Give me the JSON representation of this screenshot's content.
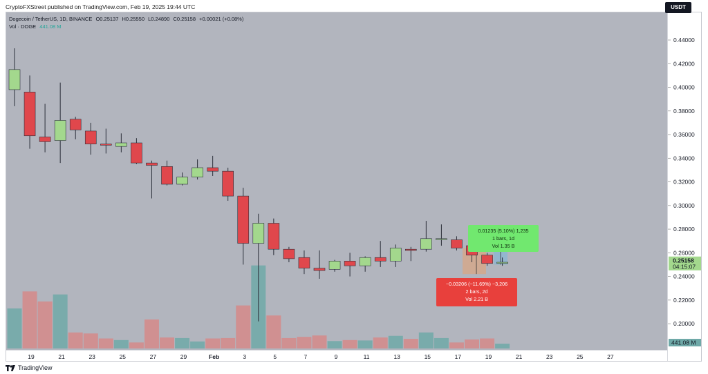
{
  "publisher_text": "CryptoFXStreet published on TradingView.com, Feb 19, 2025 19:44 UTC",
  "header": {
    "symbol": "Dogecoin / TetherUS, 1D, BINANCE",
    "open": "O0.25137",
    "high": "H0.25550",
    "low": "L0.24890",
    "close": "C0.25158",
    "change": "+0.00021 (+0.08%)",
    "volume_label": "Vol · DOGE",
    "volume_value": "441.08 M"
  },
  "currency_badge": "USDT",
  "measure_up": {
    "line1": "0.01235 (5.10%) 1,235",
    "line2": "1 bars, 1d",
    "line3": "Vol 1.35 B"
  },
  "measure_down": {
    "line1": "−0.03206 (−11.69%) −3,206",
    "line2": "2 bars, 2d",
    "line3": "Vol 2.21 B"
  },
  "last_price": {
    "price": "0.25158",
    "countdown": "04:15:07"
  },
  "volume_badge": "441.08 M",
  "footer": {
    "brand": "TradingView"
  },
  "colors": {
    "up": "#a3d88d",
    "down": "#e0474c",
    "vol_up": "#6fa9a8",
    "vol_down": "#d58a8a",
    "background": "#b2b5be"
  },
  "chart_data": {
    "type": "candlestick",
    "y_ticks": [
      0.2,
      0.22,
      0.24,
      0.26,
      0.28,
      0.3,
      0.32,
      0.34,
      0.36,
      0.38,
      0.4,
      0.42,
      0.44
    ],
    "y_tick_labels": [
      "0.20000",
      "0.22000",
      "0.24000",
      "0.26000",
      "0.28000",
      "0.30000",
      "0.32000",
      "0.34000",
      "0.36000",
      "0.38000",
      "0.40000",
      "0.42000",
      "0.44000"
    ],
    "ylim": [
      0.18,
      0.465
    ],
    "x_tick_labels": [
      "19",
      "21",
      "23",
      "25",
      "27",
      "29",
      "Feb",
      "3",
      "5",
      "7",
      "9",
      "11",
      "13",
      "15",
      "17",
      "19",
      "21",
      "23",
      "25",
      "27"
    ],
    "candles": [
      {
        "o": 0.398,
        "h": 0.433,
        "l": 0.384,
        "c": 0.415,
        "v": 200
      },
      {
        "o": 0.396,
        "h": 0.41,
        "l": 0.348,
        "c": 0.359,
        "v": 285
      },
      {
        "o": 0.358,
        "h": 0.386,
        "l": 0.345,
        "c": 0.354,
        "v": 235
      },
      {
        "o": 0.355,
        "h": 0.404,
        "l": 0.336,
        "c": 0.372,
        "v": 270
      },
      {
        "o": 0.373,
        "h": 0.375,
        "l": 0.356,
        "c": 0.364,
        "v": 80
      },
      {
        "o": 0.363,
        "h": 0.37,
        "l": 0.343,
        "c": 0.352,
        "v": 75
      },
      {
        "o": 0.352,
        "h": 0.365,
        "l": 0.344,
        "c": 0.351,
        "v": 50
      },
      {
        "o": 0.35,
        "h": 0.361,
        "l": 0.345,
        "c": 0.353,
        "v": 42
      },
      {
        "o": 0.353,
        "h": 0.357,
        "l": 0.335,
        "c": 0.336,
        "v": 30
      },
      {
        "o": 0.336,
        "h": 0.338,
        "l": 0.306,
        "c": 0.334,
        "v": 145
      },
      {
        "o": 0.333,
        "h": 0.338,
        "l": 0.317,
        "c": 0.318,
        "v": 55
      },
      {
        "o": 0.318,
        "h": 0.328,
        "l": 0.317,
        "c": 0.324,
        "v": 52
      },
      {
        "o": 0.324,
        "h": 0.339,
        "l": 0.322,
        "c": 0.332,
        "v": 35
      },
      {
        "o": 0.332,
        "h": 0.342,
        "l": 0.325,
        "c": 0.329,
        "v": 50
      },
      {
        "o": 0.329,
        "h": 0.332,
        "l": 0.304,
        "c": 0.308,
        "v": 52
      },
      {
        "o": 0.308,
        "h": 0.315,
        "l": 0.25,
        "c": 0.268,
        "v": 215
      },
      {
        "o": 0.268,
        "h": 0.293,
        "l": 0.202,
        "c": 0.285,
        "v": 415
      },
      {
        "o": 0.285,
        "h": 0.289,
        "l": 0.258,
        "c": 0.263,
        "v": 165
      },
      {
        "o": 0.263,
        "h": 0.265,
        "l": 0.252,
        "c": 0.255,
        "v": 52
      },
      {
        "o": 0.256,
        "h": 0.262,
        "l": 0.242,
        "c": 0.247,
        "v": 58
      },
      {
        "o": 0.247,
        "h": 0.262,
        "l": 0.238,
        "c": 0.245,
        "v": 65
      },
      {
        "o": 0.246,
        "h": 0.254,
        "l": 0.244,
        "c": 0.253,
        "v": 37
      },
      {
        "o": 0.253,
        "h": 0.26,
        "l": 0.24,
        "c": 0.249,
        "v": 42
      },
      {
        "o": 0.249,
        "h": 0.257,
        "l": 0.244,
        "c": 0.256,
        "v": 40
      },
      {
        "o": 0.256,
        "h": 0.27,
        "l": 0.248,
        "c": 0.253,
        "v": 55
      },
      {
        "o": 0.253,
        "h": 0.267,
        "l": 0.248,
        "c": 0.264,
        "v": 63
      },
      {
        "o": 0.263,
        "h": 0.265,
        "l": 0.253,
        "c": 0.262,
        "v": 48
      },
      {
        "o": 0.263,
        "h": 0.287,
        "l": 0.261,
        "c": 0.272,
        "v": 80
      },
      {
        "o": 0.272,
        "h": 0.284,
        "l": 0.266,
        "c": 0.272,
        "v": 52
      },
      {
        "o": 0.271,
        "h": 0.274,
        "l": 0.262,
        "c": 0.264,
        "v": 30
      },
      {
        "o": 0.266,
        "h": 0.272,
        "l": 0.252,
        "c": 0.258,
        "v": 45
      },
      {
        "o": 0.258,
        "h": 0.26,
        "l": 0.249,
        "c": 0.251,
        "v": 50
      },
      {
        "o": 0.251,
        "h": 0.256,
        "l": 0.249,
        "c": 0.252,
        "v": 24
      }
    ]
  }
}
